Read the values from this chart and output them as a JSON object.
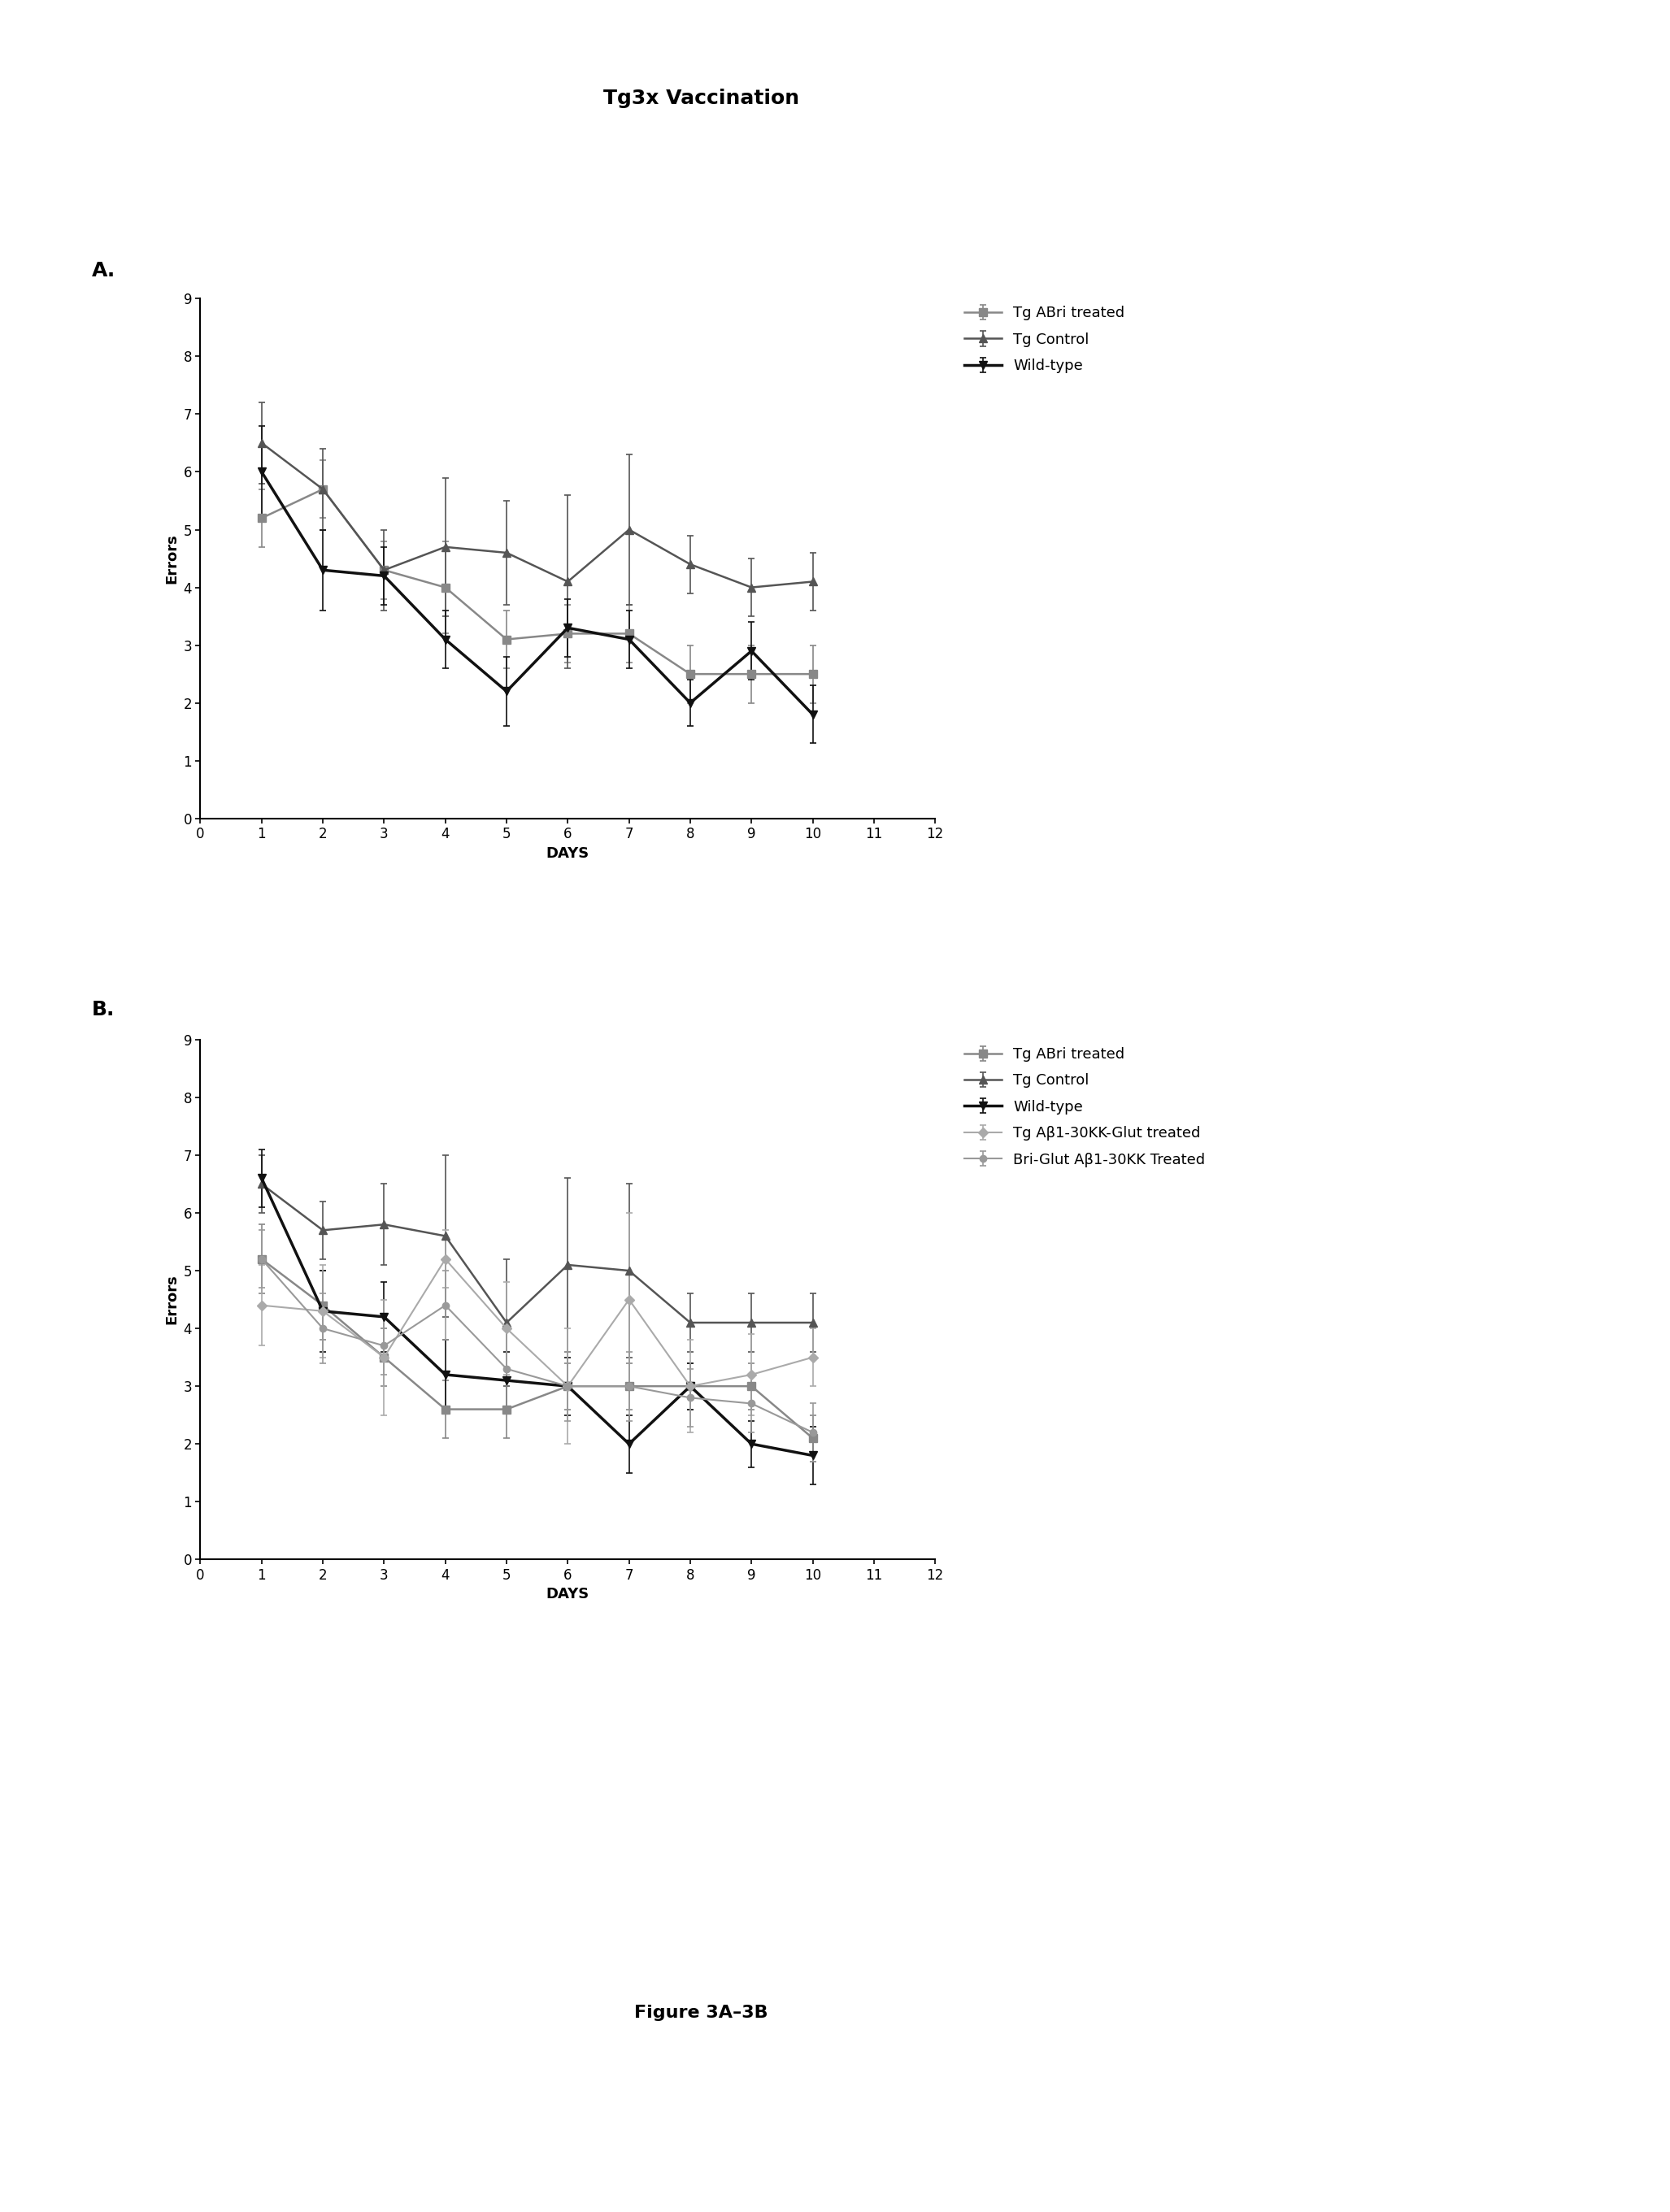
{
  "title": "Tg3x Vaccination",
  "title_fontsize": 18,
  "fig_caption": "Figure 3A–3B",
  "label_A": "A.",
  "label_B": "B.",
  "xlabel": "DAYS",
  "ylabel": "Errors",
  "xlim": [
    0,
    12
  ],
  "ylim": [
    0,
    9
  ],
  "yticks": [
    0,
    1,
    2,
    3,
    4,
    5,
    6,
    7,
    8,
    9
  ],
  "xticks": [
    0,
    1,
    2,
    3,
    4,
    5,
    6,
    7,
    8,
    9,
    10,
    11,
    12
  ],
  "days": [
    1,
    2,
    3,
    4,
    5,
    6,
    7,
    8,
    9,
    10
  ],
  "panelA": {
    "series": [
      {
        "label": "Tg ABri treated",
        "color": "#888888",
        "marker": "s",
        "linewidth": 1.8,
        "markersize": 7,
        "y": [
          5.2,
          5.7,
          4.3,
          4.0,
          3.1,
          3.2,
          3.2,
          2.5,
          2.5,
          2.5
        ],
        "yerr": [
          0.5,
          0.5,
          0.5,
          0.8,
          0.5,
          0.5,
          0.5,
          0.5,
          0.5,
          0.5
        ]
      },
      {
        "label": "Tg Control",
        "color": "#555555",
        "marker": "^",
        "linewidth": 1.8,
        "markersize": 7,
        "y": [
          6.5,
          5.7,
          4.3,
          4.7,
          4.6,
          4.1,
          5.0,
          4.4,
          4.0,
          4.1
        ],
        "yerr": [
          0.7,
          0.7,
          0.7,
          1.2,
          0.9,
          1.5,
          1.3,
          0.5,
          0.5,
          0.5
        ]
      },
      {
        "label": "Wild-type",
        "color": "#111111",
        "marker": "v",
        "linewidth": 2.5,
        "markersize": 7,
        "y": [
          6.0,
          4.3,
          4.2,
          3.1,
          2.2,
          3.3,
          3.1,
          2.0,
          2.9,
          1.8
        ],
        "yerr": [
          0.8,
          0.7,
          0.5,
          0.5,
          0.6,
          0.5,
          0.5,
          0.4,
          0.5,
          0.5
        ]
      }
    ]
  },
  "panelB": {
    "series": [
      {
        "label": "Tg ABri treated",
        "color": "#888888",
        "marker": "s",
        "linewidth": 1.8,
        "markersize": 7,
        "y": [
          5.2,
          4.4,
          3.5,
          2.6,
          2.6,
          3.0,
          3.0,
          3.0,
          3.0,
          2.1
        ],
        "yerr": [
          0.6,
          0.6,
          0.5,
          0.5,
          0.5,
          0.4,
          0.4,
          0.4,
          0.4,
          0.4
        ]
      },
      {
        "label": "Tg Control",
        "color": "#555555",
        "marker": "^",
        "linewidth": 1.8,
        "markersize": 7,
        "y": [
          6.5,
          5.7,
          5.8,
          5.6,
          4.1,
          5.1,
          5.0,
          4.1,
          4.1,
          4.1
        ],
        "yerr": [
          0.5,
          0.5,
          0.7,
          1.4,
          1.1,
          1.5,
          1.5,
          0.5,
          0.5,
          0.5
        ]
      },
      {
        "label": "Wild-type",
        "color": "#111111",
        "marker": "v",
        "linewidth": 2.5,
        "markersize": 7,
        "y": [
          6.6,
          4.3,
          4.2,
          3.2,
          3.1,
          3.0,
          2.0,
          3.0,
          2.0,
          1.8
        ],
        "yerr": [
          0.5,
          0.7,
          0.6,
          0.6,
          0.5,
          0.5,
          0.5,
          0.4,
          0.4,
          0.5
        ]
      },
      {
        "label": "Tg Aβ1-30KK-Glut treated",
        "color": "#aaaaaa",
        "marker": "D",
        "linewidth": 1.5,
        "markersize": 6,
        "y": [
          4.4,
          4.3,
          3.5,
          5.2,
          4.0,
          3.0,
          4.5,
          3.0,
          3.2,
          3.5
        ],
        "yerr": [
          0.7,
          0.8,
          1.0,
          0.5,
          0.8,
          1.0,
          1.5,
          0.8,
          0.7,
          0.5
        ]
      },
      {
        "label": "Bri-Glut Aβ1-30KK Treated",
        "color": "#999999",
        "marker": "o",
        "linewidth": 1.5,
        "markersize": 6,
        "y": [
          5.2,
          4.0,
          3.7,
          4.4,
          3.3,
          3.0,
          3.0,
          2.8,
          2.7,
          2.2
        ],
        "yerr": [
          0.5,
          0.6,
          0.5,
          0.6,
          0.7,
          0.6,
          0.6,
          0.5,
          0.5,
          0.5
        ]
      }
    ]
  },
  "legend_fontsize": 13,
  "axis_label_fontsize": 13,
  "tick_fontsize": 12,
  "panel_label_fontsize": 18,
  "caption_fontsize": 16,
  "background_color": "#ffffff"
}
